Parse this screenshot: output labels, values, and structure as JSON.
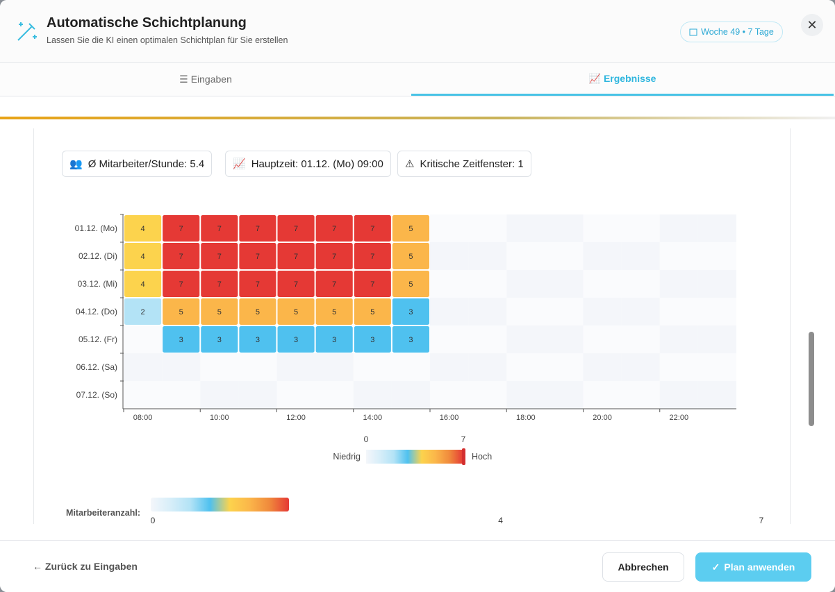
{
  "header": {
    "title": "Automatische Schichtplanung",
    "subtitle": "Lassen Sie die KI einen optimalen Schichtplan für Sie erstellen",
    "badge": "Woche 49 • 7 Tage"
  },
  "tabs": [
    "Eingaben",
    "Ergebnisse"
  ],
  "stats": [
    "Ø Mitarbeiter/Stunde: 5.4",
    "Hauptzeit: 01.12. (Mo) 09:00",
    "Kritische Zeitfenster: 1"
  ],
  "chart_data": {
    "type": "heatmap",
    "rows": [
      "01.12. (Mo)",
      "02.12. (Di)",
      "03.12. (Mi)",
      "04.12. (Do)",
      "05.12. (Fr)",
      "06.12. (Sa)",
      "07.12. (So)"
    ],
    "x": [
      8,
      9,
      10,
      11,
      12,
      13,
      14,
      15,
      16,
      17,
      18,
      19,
      20,
      21,
      22,
      23
    ],
    "xlim": [
      8,
      24
    ],
    "xticks": [
      {
        "value": 8,
        "label": "08:00"
      },
      {
        "value": 10,
        "label": "10:00"
      },
      {
        "value": 12,
        "label": "12:00"
      },
      {
        "value": 14,
        "label": "14:00"
      },
      {
        "value": 16,
        "label": "16:00"
      },
      {
        "value": 18,
        "label": "18:00"
      },
      {
        "value": 20,
        "label": "20:00"
      },
      {
        "value": 22,
        "label": "22:00"
      }
    ],
    "values": [
      [
        4,
        7,
        7,
        7,
        7,
        7,
        7,
        5,
        0,
        0,
        0,
        0,
        0,
        0,
        0,
        0
      ],
      [
        4,
        7,
        7,
        7,
        7,
        7,
        7,
        5,
        0,
        0,
        0,
        0,
        0,
        0,
        0,
        0
      ],
      [
        4,
        7,
        7,
        7,
        7,
        7,
        7,
        5,
        0,
        0,
        0,
        0,
        0,
        0,
        0,
        0
      ],
      [
        2,
        5,
        5,
        5,
        5,
        5,
        5,
        3,
        0,
        0,
        0,
        0,
        0,
        0,
        0,
        0
      ],
      [
        0,
        3,
        3,
        3,
        3,
        3,
        3,
        3,
        0,
        0,
        0,
        0,
        0,
        0,
        0,
        0
      ],
      [
        0,
        0,
        0,
        0,
        0,
        0,
        0,
        0,
        0,
        0,
        0,
        0,
        0,
        0,
        0,
        0
      ],
      [
        0,
        0,
        0,
        0,
        0,
        0,
        0,
        0,
        0,
        0,
        0,
        0,
        0,
        0,
        0,
        0
      ]
    ],
    "colors": [
      "#f4f6fa",
      "#d7eef9",
      "#b3e3f6",
      "#4fc1ef",
      "#fcd34d",
      "#fbb64a",
      "#f08a3c",
      "#e53935"
    ],
    "zlim": [
      0,
      7
    ],
    "legend": {
      "low": "Niedrig",
      "high": "Hoch"
    },
    "scale": {
      "label": "Mitarbeiteranzahl:",
      "ticks": [
        0,
        4,
        7
      ]
    }
  },
  "footer": {
    "back": "Zurück zu Eingaben",
    "cancel": "Abbrechen",
    "apply": "Plan anwenden"
  }
}
